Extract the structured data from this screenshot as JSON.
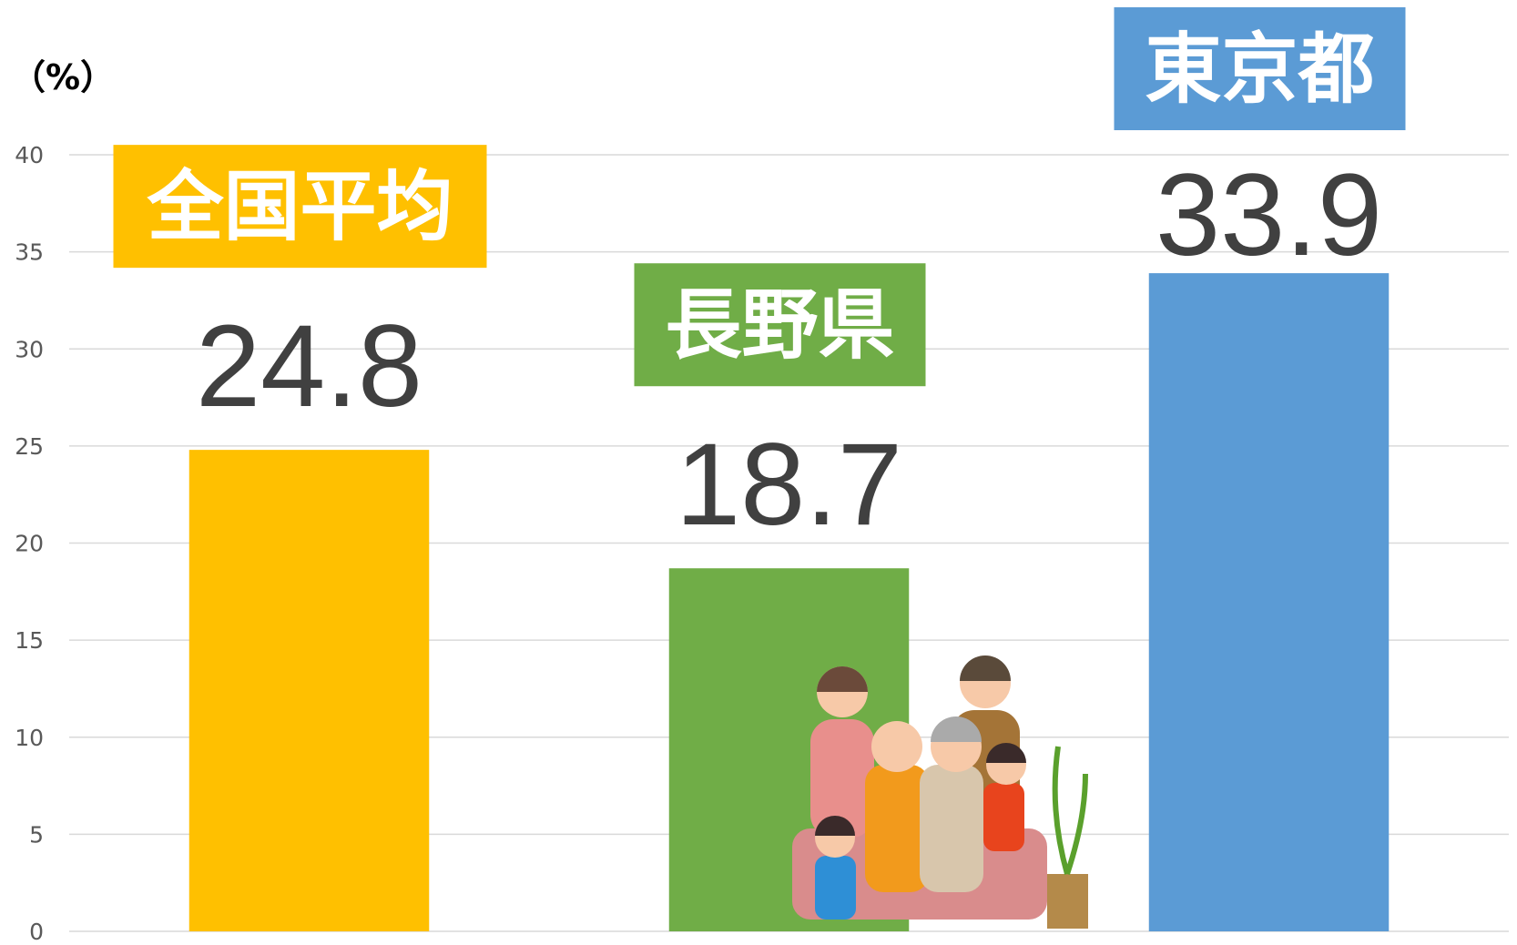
{
  "chart_data": {
    "type": "bar",
    "y_axis_label": "（%）",
    "categories": [
      "全国平均",
      "長野県",
      "東京都"
    ],
    "values": [
      24.8,
      18.7,
      33.9
    ],
    "colors": [
      "#FFC000",
      "#70AD47",
      "#5B9BD5"
    ],
    "ylim": [
      0,
      40
    ],
    "yticks": [
      0,
      5,
      10,
      15,
      20,
      25,
      30,
      35,
      40
    ],
    "grid": true
  }
}
